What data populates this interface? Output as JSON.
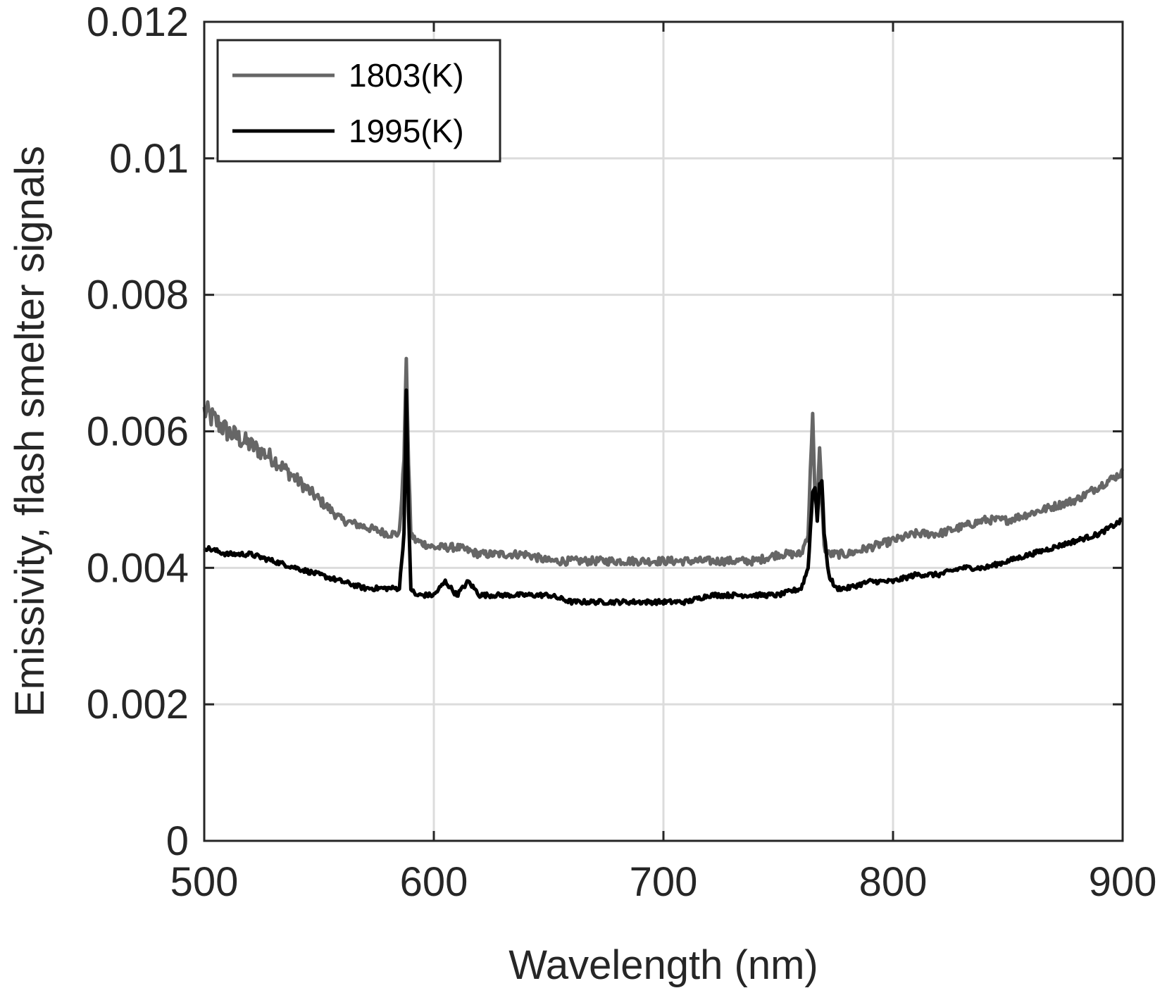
{
  "chart_data": {
    "type": "line",
    "title": "",
    "xlabel": "Wavelength (nm)",
    "ylabel": "Emissivity, flash smelter signals",
    "xlim": [
      500,
      900
    ],
    "ylim": [
      0,
      0.012
    ],
    "xticks": [
      500,
      600,
      700,
      800,
      900
    ],
    "xtick_labels": [
      "500",
      "600",
      "700",
      "800",
      "900"
    ],
    "yticks": [
      0,
      0.002,
      0.004,
      0.006,
      0.008,
      0.01,
      0.012
    ],
    "ytick_labels": [
      "0",
      "0.002",
      "0.004",
      "0.006",
      "0.008",
      "0.01",
      "0.012"
    ],
    "grid": true,
    "legend_position": "top-left",
    "series": [
      {
        "name": "1803(K)",
        "color": "#666666",
        "x": [
          500,
          510,
          520,
          530,
          540,
          550,
          560,
          570,
          580,
          585,
          587,
          588,
          589,
          590,
          592,
          600,
          610,
          620,
          630,
          640,
          650,
          660,
          670,
          680,
          690,
          700,
          710,
          720,
          730,
          740,
          750,
          760,
          763,
          765,
          766,
          767,
          768,
          769,
          770,
          772,
          775,
          780,
          790,
          800,
          810,
          820,
          830,
          840,
          850,
          860,
          870,
          880,
          890,
          900
        ],
        "y": [
          0.0063,
          0.006,
          0.0058,
          0.0056,
          0.0053,
          0.005,
          0.0047,
          0.0046,
          0.0045,
          0.0045,
          0.0056,
          0.0071,
          0.0055,
          0.0045,
          0.0044,
          0.0043,
          0.0043,
          0.0042,
          0.0042,
          0.0042,
          0.0041,
          0.0041,
          0.0041,
          0.0041,
          0.0041,
          0.0041,
          0.0041,
          0.0041,
          0.0041,
          0.0041,
          0.0042,
          0.0042,
          0.0045,
          0.0063,
          0.005,
          0.0048,
          0.0058,
          0.005,
          0.0043,
          0.0042,
          0.0042,
          0.0042,
          0.0043,
          0.0044,
          0.0045,
          0.0045,
          0.0046,
          0.0047,
          0.0047,
          0.0048,
          0.0049,
          0.005,
          0.0052,
          0.0054
        ]
      },
      {
        "name": "1995(K)",
        "color": "#000000",
        "x": [
          500,
          510,
          520,
          530,
          540,
          550,
          560,
          570,
          580,
          585,
          587,
          588,
          589,
          590,
          592,
          600,
          605,
          610,
          615,
          620,
          630,
          640,
          650,
          660,
          670,
          680,
          690,
          700,
          710,
          720,
          730,
          740,
          750,
          760,
          763,
          765,
          766,
          767,
          768,
          769,
          770,
          772,
          775,
          780,
          790,
          800,
          810,
          820,
          830,
          840,
          850,
          860,
          870,
          880,
          890,
          900
        ],
        "y": [
          0.0043,
          0.0042,
          0.0042,
          0.0041,
          0.004,
          0.0039,
          0.0038,
          0.0037,
          0.0037,
          0.0037,
          0.0045,
          0.0066,
          0.0048,
          0.0037,
          0.0036,
          0.0036,
          0.0038,
          0.0036,
          0.0038,
          0.0036,
          0.0036,
          0.0036,
          0.0036,
          0.0035,
          0.0035,
          0.0035,
          0.0035,
          0.0035,
          0.0035,
          0.0036,
          0.0036,
          0.0036,
          0.0036,
          0.0037,
          0.004,
          0.0051,
          0.0052,
          0.0047,
          0.0052,
          0.0053,
          0.0045,
          0.0039,
          0.0037,
          0.0037,
          0.0038,
          0.0038,
          0.0039,
          0.0039,
          0.004,
          0.004,
          0.0041,
          0.0042,
          0.0043,
          0.0044,
          0.0045,
          0.0047
        ]
      }
    ]
  }
}
